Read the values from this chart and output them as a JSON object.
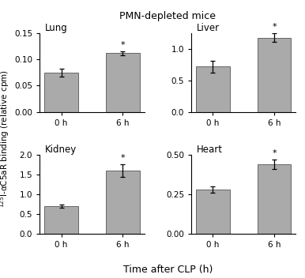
{
  "title": "PMN-depleted mice",
  "xlabel": "Time after CLP (h)",
  "ylabel": "$^{125}$I-αC5aR binding (relative cpm)",
  "bar_color": "#aaaaaa",
  "bar_edgecolor": "#666666",
  "subplots": [
    {
      "title": "Lung",
      "categories": [
        "0 h",
        "6 h"
      ],
      "values": [
        0.075,
        0.112
      ],
      "errors": [
        0.008,
        0.004
      ],
      "ylim": [
        0,
        0.15
      ],
      "yticks": [
        0.0,
        0.05,
        0.1,
        0.15
      ],
      "yticklabels": [
        "0.00",
        "0.05",
        "0.10",
        "0.15"
      ],
      "sig": [
        false,
        true
      ]
    },
    {
      "title": "Liver",
      "categories": [
        "0 h",
        "6 h"
      ],
      "values": [
        0.72,
        1.18
      ],
      "errors": [
        0.09,
        0.07
      ],
      "ylim": [
        0.0,
        1.25
      ],
      "yticks": [
        0.0,
        0.5,
        1.0
      ],
      "yticklabels": [
        "0.0",
        "0.5",
        "1.0"
      ],
      "sig": [
        false,
        true
      ]
    },
    {
      "title": "Kidney",
      "categories": [
        "0 h",
        "6 h"
      ],
      "values": [
        0.69,
        1.6
      ],
      "errors": [
        0.04,
        0.16
      ],
      "ylim": [
        0.0,
        2.0
      ],
      "yticks": [
        0.0,
        0.5,
        1.0,
        1.5,
        2.0
      ],
      "yticklabels": [
        "0.0",
        "0.5",
        "1.0",
        "1.5",
        "2.0"
      ],
      "sig": [
        false,
        true
      ]
    },
    {
      "title": "Heart",
      "categories": [
        "0 h",
        "6 h"
      ],
      "values": [
        0.28,
        0.44
      ],
      "errors": [
        0.02,
        0.03
      ],
      "ylim": [
        0.0,
        0.5
      ],
      "yticks": [
        0.0,
        0.25,
        0.5
      ],
      "yticklabels": [
        "0.00",
        "0.25",
        "0.50"
      ],
      "sig": [
        false,
        true
      ]
    }
  ]
}
